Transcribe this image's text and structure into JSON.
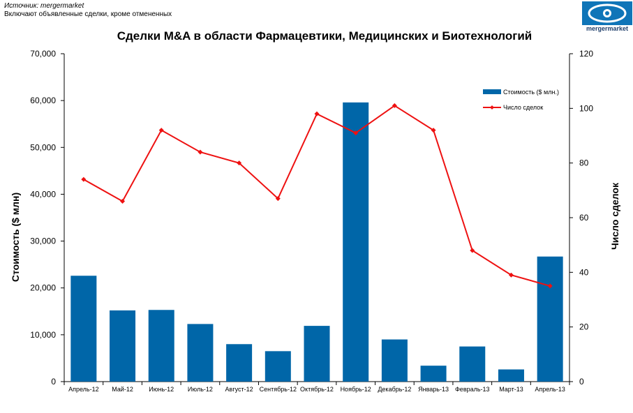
{
  "header": {
    "source": "Источник: mergermarket",
    "note": "Включают объявленные сделки, кроме отмененных",
    "logo_text": "mergermarket"
  },
  "colors": {
    "bar": "#0066a8",
    "line": "#ee1111",
    "logo": "#0f75b8"
  },
  "chart_data": {
    "type": "bar",
    "title": "Сделки  M&A в области Фармацевтики, Медицинских  и Биотехнологий",
    "xlabel": "",
    "ylabel": "Стоимость  ($ млн)",
    "y2label": "Число сделок",
    "categories": [
      "Апрель-12",
      "Май-12",
      "Июнь-12",
      "Июль-12",
      "Август-12",
      "Сентябрь-12",
      "Октябрь-12",
      "Ноябрь-12",
      "Декабрь-12",
      "Январь-13",
      "Февраль-13",
      "Март-13",
      "Апрель-13"
    ],
    "ylim": [
      0,
      70000
    ],
    "y2lim": [
      0,
      120
    ],
    "yticks": [
      "0",
      "10,000",
      "20,000",
      "30,000",
      "40,000",
      "50,000",
      "60,000",
      "70,000"
    ],
    "y2ticks": [
      "0",
      "20",
      "40",
      "60",
      "80",
      "100",
      "120"
    ],
    "legend_position": "top-right",
    "series": [
      {
        "name": "Стоимость ($ млн.)",
        "type": "bar",
        "axis": "left",
        "values": [
          22600,
          15200,
          15300,
          12300,
          8000,
          6500,
          11900,
          59600,
          9000,
          3400,
          7500,
          2600,
          26700
        ]
      },
      {
        "name": "Число сделок",
        "type": "line",
        "axis": "right",
        "values": [
          74,
          66,
          92,
          84,
          80,
          67,
          98,
          91,
          101,
          92,
          48,
          39,
          35
        ]
      }
    ]
  }
}
